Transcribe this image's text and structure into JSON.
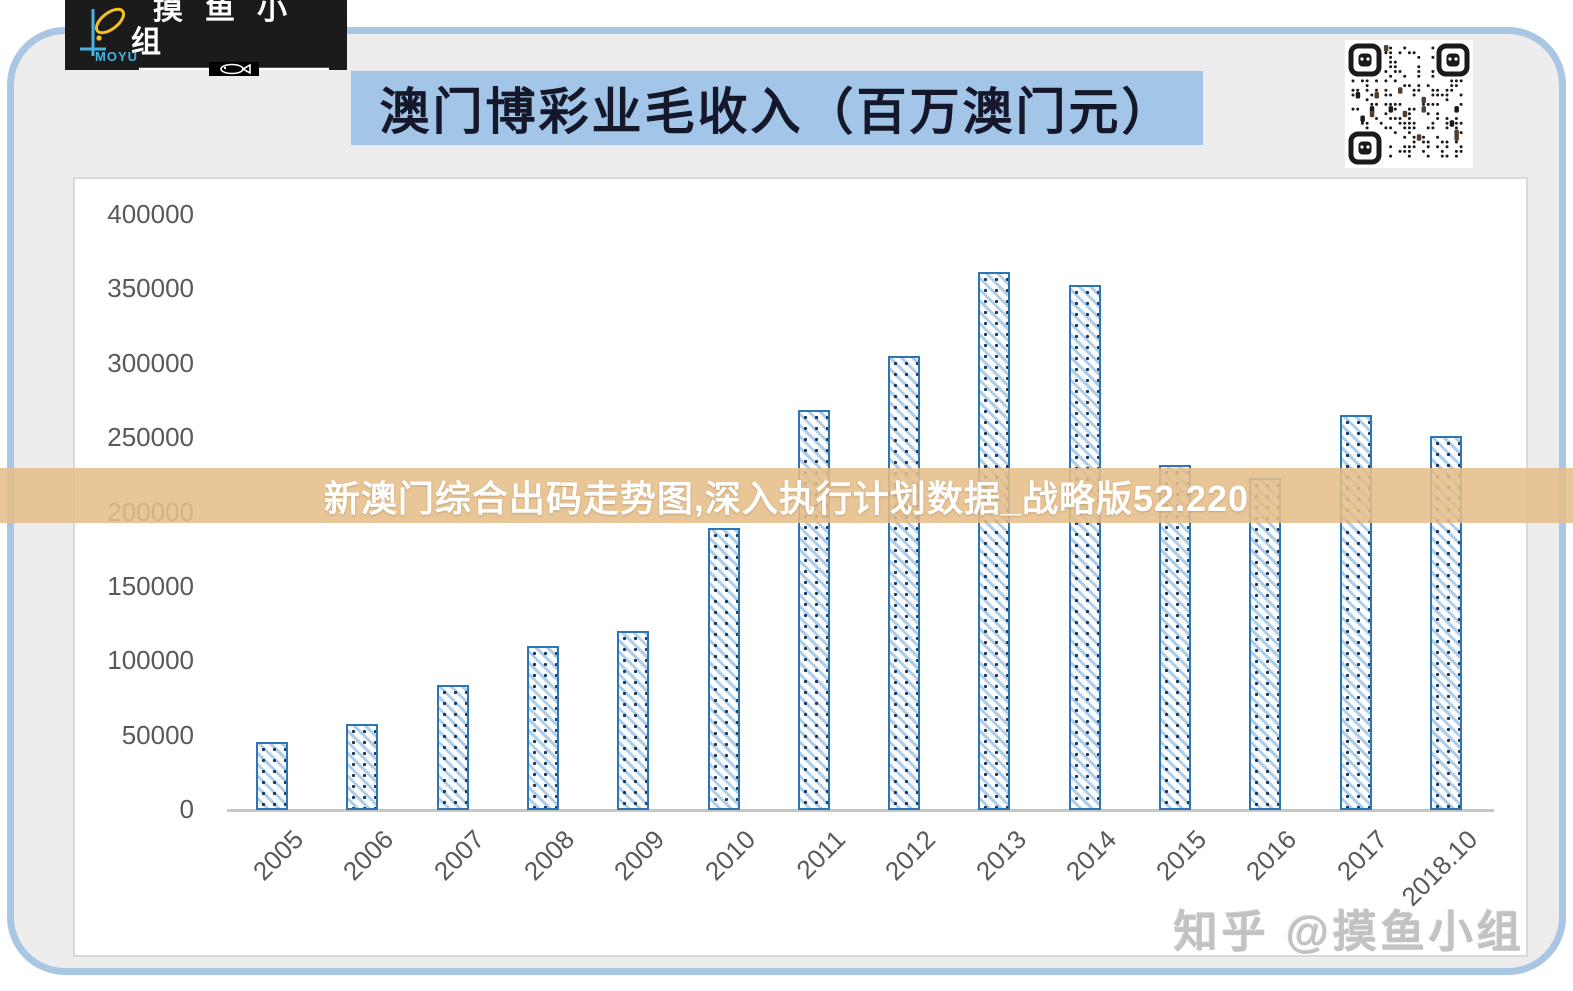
{
  "logo": {
    "brand_cn": "摸鱼小组",
    "brand_en": "MOYU"
  },
  "header": {
    "title": "澳门博彩业毛收入（百万澳门元）"
  },
  "banner": {
    "text": "新澳门综合出码走势图,深入执行计划数据_战略版52.220"
  },
  "watermarks": {
    "chart": "摸鱼小组",
    "credit": "知乎 @摸鱼小组"
  },
  "colors": {
    "frame_border": "#A9C6E3",
    "page_background": "#EDEDED",
    "title_background": "#A3C6E8",
    "bar_border": "#2E75B6",
    "bar_hatch": "#AECDE8",
    "bar_dot": "#17375E",
    "banner_background": "#E6BE8A",
    "axis_label": "#595959",
    "watermark_blue": "#A4C7E8",
    "logo_background": "#1B1B1B",
    "logo_blue": "#45B3E3",
    "logo_yellow": "#F2C21F"
  },
  "chart_data": {
    "type": "bar",
    "title": "澳门博彩业毛收入（百万澳门元）",
    "xlabel": "",
    "ylabel": "",
    "categories": [
      "2005",
      "2006",
      "2007",
      "2008",
      "2009",
      "2010",
      "2011",
      "2012",
      "2013",
      "2014",
      "2015",
      "2016",
      "2017",
      "2018.10"
    ],
    "values": [
      46000,
      57500,
      84000,
      110000,
      120400,
      189600,
      269100,
      305200,
      361900,
      352700,
      231800,
      223200,
      265700,
      251400
    ],
    "ylim": [
      0,
      400000
    ],
    "ytick_step": 50000,
    "y_ticks": [
      "0",
      "50000",
      "100000",
      "150000",
      "200000",
      "250000",
      "300000",
      "350000",
      "400000"
    ],
    "grid": false,
    "legend": "none",
    "bar_style": "diagonal-hatch"
  }
}
